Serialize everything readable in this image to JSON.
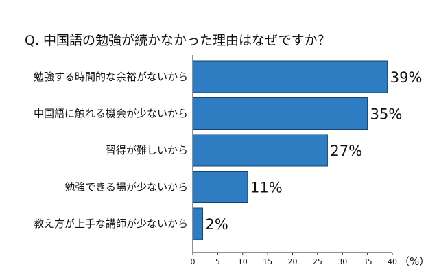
{
  "chart_data": {
    "type": "bar",
    "orientation": "horizontal",
    "title": "Q. 中国語の勉強が続かなかった理由はなぜですか？",
    "categories": [
      "勉強する時間的な余裕がないから",
      "中国語に触れる機会が少ないから",
      "習得が難しいから",
      "勉強できる場が少ないから",
      "教え方が上手な講師が少ないから"
    ],
    "values": [
      39,
      35,
      27,
      11,
      2
    ],
    "value_labels": [
      "39%",
      "35%",
      "27%",
      "11%",
      "2%"
    ],
    "xlim": [
      0,
      40
    ],
    "xticks": [
      0,
      5,
      10,
      15,
      20,
      25,
      30,
      35,
      40
    ],
    "xunit": "（%）",
    "grid": false,
    "legend": "none",
    "bar_color": "#2e7dc2",
    "bar_edge_color": "#16446e"
  }
}
